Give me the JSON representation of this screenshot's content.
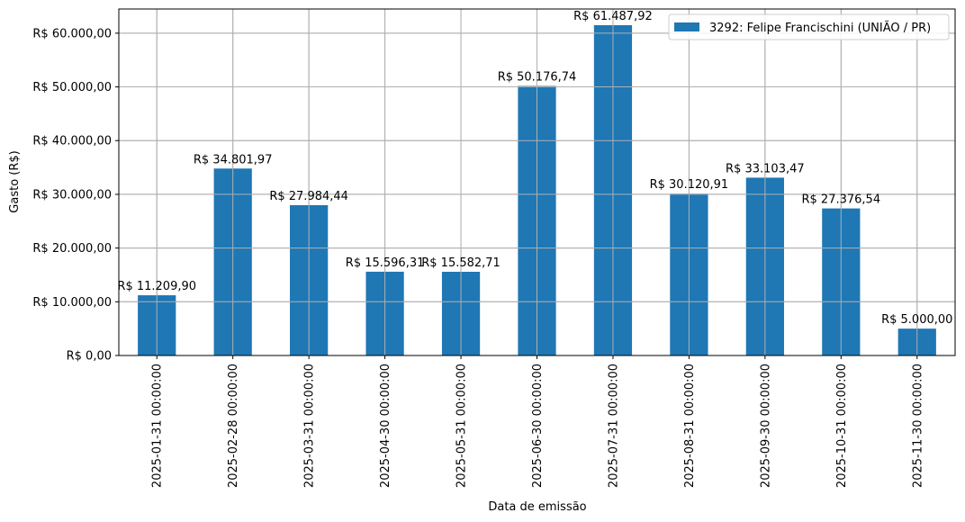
{
  "chart_data": {
    "type": "bar",
    "title": "",
    "xlabel": "Data de emissão",
    "ylabel": "Gasto (R$)",
    "ylim": [
      0,
      64500
    ],
    "grid": true,
    "legend_position": "upper right",
    "bar_color": "#1f77b4",
    "categories": [
      "2025-01-31 00:00:00",
      "2025-02-28 00:00:00",
      "2025-03-31 00:00:00",
      "2025-04-30 00:00:00",
      "2025-05-31 00:00:00",
      "2025-06-30 00:00:00",
      "2025-07-31 00:00:00",
      "2025-08-31 00:00:00",
      "2025-09-30 00:00:00",
      "2025-10-31 00:00:00",
      "2025-11-30 00:00:00"
    ],
    "series": [
      {
        "name": "3292: Felipe Francischini (UNIÃO / PR)",
        "values": [
          11209.9,
          34801.97,
          27984.44,
          15596.31,
          15582.71,
          50176.74,
          61487.92,
          30120.91,
          33103.47,
          27376.54,
          5000.0
        ]
      }
    ],
    "data_labels": [
      "R$ 11.209,90",
      "R$ 34.801,97",
      "R$ 27.984,44",
      "R$ 15.596,31",
      "R$ 15.582,71",
      "R$ 50.176,74",
      "R$ 61.487,92",
      "R$ 30.120,91",
      "R$ 33.103,47",
      "R$ 27.376,54",
      "R$ 5.000,00"
    ],
    "yticks": [
      {
        "value": 0,
        "label": "R$ 0,00"
      },
      {
        "value": 10000,
        "label": "R$ 10.000,00"
      },
      {
        "value": 20000,
        "label": "R$ 20.000,00"
      },
      {
        "value": 30000,
        "label": "R$ 30.000,00"
      },
      {
        "value": 40000,
        "label": "R$ 40.000,00"
      },
      {
        "value": 50000,
        "label": "R$ 50.000,00"
      },
      {
        "value": 60000,
        "label": "R$ 60.000,00"
      }
    ]
  }
}
